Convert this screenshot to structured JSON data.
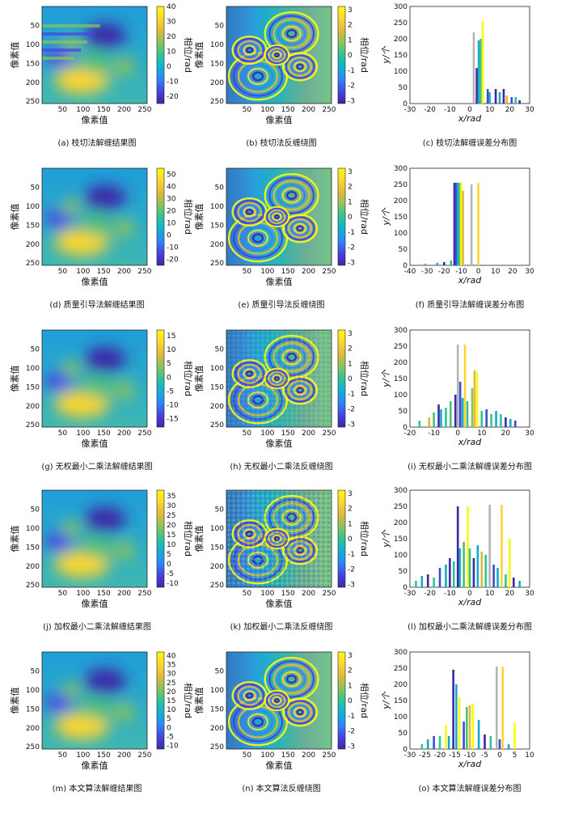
{
  "labels": {
    "pixel_axis": "像素值",
    "phase_colorbar": "相位/rad",
    "hist_x": "x/rad",
    "hist_y": "y/个"
  },
  "colormap": [
    "#3e26a8",
    "#4743e3",
    "#2e87f7",
    "#0fb2d4",
    "#2ec497",
    "#8bc35b",
    "#e0b93a",
    "#fed52f",
    "#f9fb0e"
  ],
  "rows": [
    {
      "captions": [
        "(a) 枝切法解缠结果图",
        "(b) 枝切法反缠绕图",
        "(c) 枝切法解缠误差分布图"
      ],
      "unwrap_cbar": {
        "min": -25,
        "max": 40,
        "ticks": [
          "40",
          "30",
          "20",
          "10",
          "0",
          "-10",
          "-20"
        ]
      },
      "wrap_cbar_ticks": [
        "3",
        "2",
        "1",
        "0",
        "-1",
        "-2",
        "-3"
      ],
      "hist": {
        "xmin": -30,
        "xmax": 30,
        "xticks": [
          "-30",
          "-20",
          "-10",
          "0",
          "10",
          "20",
          "30"
        ],
        "ymax": 300,
        "yticks": [
          "300",
          "250",
          "200",
          "150",
          "100",
          "50",
          "0"
        ],
        "bars": [
          {
            "x": 2,
            "y": 220,
            "c": "#b5b5b5"
          },
          {
            "x": 3.5,
            "y": 110,
            "c": "#3e26a8"
          },
          {
            "x": 4.5,
            "y": 195,
            "c": "#17a9c8"
          },
          {
            "x": 5.5,
            "y": 200,
            "c": "#4bbf7c"
          },
          {
            "x": 6.5,
            "y": 255,
            "c": "#f9fb0e"
          },
          {
            "x": 9,
            "y": 45,
            "c": "#3b4ccf"
          },
          {
            "x": 10,
            "y": 35,
            "c": "#26b0b6"
          },
          {
            "x": 13,
            "y": 45,
            "c": "#3e26a8"
          },
          {
            "x": 15,
            "y": 35,
            "c": "#17a9c8"
          },
          {
            "x": 17,
            "y": 45,
            "c": "#3e26a8"
          },
          {
            "x": 18.5,
            "y": 25,
            "c": "#e0b93a"
          },
          {
            "x": 21,
            "y": 20,
            "c": "#3b4ccf"
          },
          {
            "x": 23,
            "y": 20,
            "c": "#2ec497"
          },
          {
            "x": 25,
            "y": 10,
            "c": "#3e26a8"
          }
        ]
      }
    },
    {
      "captions": [
        "(d) 质量引导法解缠结果图",
        "(e) 质量引导法反缠绕图",
        "(f) 质量引导法解缠误差分布图"
      ],
      "unwrap_cbar": {
        "min": -25,
        "max": 55,
        "ticks": [
          "50",
          "40",
          "30",
          "20",
          "10",
          "0",
          "-10",
          "-20"
        ]
      },
      "wrap_cbar_ticks": [
        "3",
        "2",
        "1",
        "0",
        "-1",
        "-2",
        "-3"
      ],
      "hist": {
        "xmin": -40,
        "xmax": 30,
        "xticks": [
          "-40",
          "-30",
          "-20",
          "-10",
          "0",
          "10",
          "20",
          "30"
        ],
        "ymax": 300,
        "yticks": [
          "300",
          "250",
          "200",
          "150",
          "100",
          "50",
          "0"
        ],
        "bars": [
          {
            "x": -31,
            "y": 5,
            "c": "#2ec497"
          },
          {
            "x": -24,
            "y": 8,
            "c": "#17a9c8"
          },
          {
            "x": -20,
            "y": 10,
            "c": "#3e26a8"
          },
          {
            "x": -16,
            "y": 15,
            "c": "#2ec497"
          },
          {
            "x": -14,
            "y": 255,
            "c": "#3e26a8"
          },
          {
            "x": -13,
            "y": 255,
            "c": "#3b4ccf"
          },
          {
            "x": -12,
            "y": 255,
            "c": "#17a9c8"
          },
          {
            "x": -11,
            "y": 255,
            "c": "#4bbf7c"
          },
          {
            "x": -10,
            "y": 255,
            "c": "#f9fb0e"
          },
          {
            "x": -9,
            "y": 230,
            "c": "#e0b93a"
          },
          {
            "x": -4,
            "y": 250,
            "c": "#b5b5b5"
          },
          {
            "x": 0,
            "y": 255,
            "c": "#fed52f"
          }
        ]
      }
    },
    {
      "captions": [
        "(g) 无权最小二乘法解缠结果图",
        "(h) 无权最小二乘法反缠绕图",
        "(i) 无权最小二乘法解缠误差分布图"
      ],
      "unwrap_cbar": {
        "min": -18,
        "max": 17,
        "ticks": [
          "15",
          "10",
          "5",
          "0",
          "-5",
          "-10",
          "-15"
        ]
      },
      "wrap_cbar_ticks": [
        "3",
        "2",
        "1",
        "0",
        "-1",
        "-2",
        "-3"
      ],
      "hist": {
        "xmin": -20,
        "xmax": 30,
        "xticks": [
          "-20",
          "-10",
          "0",
          "10",
          "20",
          "30"
        ],
        "ymax": 300,
        "yticks": [
          "300",
          "250",
          "200",
          "150",
          "100",
          "50",
          "0"
        ],
        "bars": [
          {
            "x": -16,
            "y": 20,
            "c": "#2ec497"
          },
          {
            "x": -12,
            "y": 30,
            "c": "#e0b93a"
          },
          {
            "x": -10,
            "y": 45,
            "c": "#4bbf7c"
          },
          {
            "x": -8,
            "y": 70,
            "c": "#3e26a8"
          },
          {
            "x": -7,
            "y": 55,
            "c": "#17a9c8"
          },
          {
            "x": -5,
            "y": 60,
            "c": "#2ec497"
          },
          {
            "x": -3,
            "y": 80,
            "c": "#4bbf7c"
          },
          {
            "x": -1,
            "y": 100,
            "c": "#3e26a8"
          },
          {
            "x": 0,
            "y": 255,
            "c": "#b5b5b5"
          },
          {
            "x": 1,
            "y": 140,
            "c": "#3b4ccf"
          },
          {
            "x": 2,
            "y": 90,
            "c": "#17a9c8"
          },
          {
            "x": 3,
            "y": 255,
            "c": "#fed52f"
          },
          {
            "x": 4,
            "y": 80,
            "c": "#2ec497"
          },
          {
            "x": 6,
            "y": 120,
            "c": "#8bc35b"
          },
          {
            "x": 7,
            "y": 175,
            "c": "#e0b93a"
          },
          {
            "x": 8,
            "y": 170,
            "c": "#f9fb0e"
          },
          {
            "x": 10,
            "y": 50,
            "c": "#2ec497"
          },
          {
            "x": 12,
            "y": 55,
            "c": "#3b4ccf"
          },
          {
            "x": 14,
            "y": 40,
            "c": "#4bbf7c"
          },
          {
            "x": 16,
            "y": 50,
            "c": "#17a9c8"
          },
          {
            "x": 18,
            "y": 40,
            "c": "#2ec497"
          },
          {
            "x": 20,
            "y": 30,
            "c": "#3e26a8"
          },
          {
            "x": 22,
            "y": 25,
            "c": "#17a9c8"
          },
          {
            "x": 24,
            "y": 20,
            "c": "#3b4ccf"
          }
        ]
      }
    },
    {
      "captions": [
        "(j) 加权最小二乘法解缠结果图",
        "(k) 加权最小二乘法反缠绕图",
        "(l) 加权最小二乘法解缠误差分布图"
      ],
      "unwrap_cbar": {
        "min": -12,
        "max": 38,
        "ticks": [
          "35",
          "30",
          "25",
          "20",
          "15",
          "10",
          "5",
          "0",
          "-5",
          "-10"
        ]
      },
      "wrap_cbar_ticks": [
        "3",
        "2",
        "1",
        "0",
        "-1",
        "-2",
        "-3"
      ],
      "hist": {
        "xmin": -30,
        "xmax": 30,
        "xticks": [
          "-30",
          "-20",
          "-10",
          "0",
          "10",
          "20",
          "30"
        ],
        "ymax": 300,
        "yticks": [
          "300",
          "250",
          "200",
          "150",
          "100",
          "50",
          "0"
        ],
        "bars": [
          {
            "x": -27,
            "y": 20,
            "c": "#2ec497"
          },
          {
            "x": -24,
            "y": 35,
            "c": "#17a9c8"
          },
          {
            "x": -21,
            "y": 40,
            "c": "#3e26a8"
          },
          {
            "x": -18,
            "y": 30,
            "c": "#2ec497"
          },
          {
            "x": -15,
            "y": 60,
            "c": "#3b4ccf"
          },
          {
            "x": -12,
            "y": 70,
            "c": "#17a9c8"
          },
          {
            "x": -10,
            "y": 90,
            "c": "#3e26a8"
          },
          {
            "x": -8,
            "y": 80,
            "c": "#2ec497"
          },
          {
            "x": -6,
            "y": 250,
            "c": "#3e26a8"
          },
          {
            "x": -5,
            "y": 120,
            "c": "#17a9c8"
          },
          {
            "x": -3,
            "y": 140,
            "c": "#4bbf7c"
          },
          {
            "x": -1,
            "y": 250,
            "c": "#f9fb0e"
          },
          {
            "x": 0,
            "y": 120,
            "c": "#2ec497"
          },
          {
            "x": 2,
            "y": 90,
            "c": "#3e26a8"
          },
          {
            "x": 4,
            "y": 130,
            "c": "#17a9c8"
          },
          {
            "x": 6,
            "y": 110,
            "c": "#e0b93a"
          },
          {
            "x": 8,
            "y": 100,
            "c": "#2ec497"
          },
          {
            "x": 10,
            "y": 255,
            "c": "#b5b5b5"
          },
          {
            "x": 12,
            "y": 70,
            "c": "#3b4ccf"
          },
          {
            "x": 14,
            "y": 60,
            "c": "#17a9c8"
          },
          {
            "x": 16,
            "y": 255,
            "c": "#fed52f"
          },
          {
            "x": 18,
            "y": 40,
            "c": "#2ec497"
          },
          {
            "x": 20,
            "y": 150,
            "c": "#f9fb0e"
          },
          {
            "x": 22,
            "y": 30,
            "c": "#3e26a8"
          },
          {
            "x": 25,
            "y": 20,
            "c": "#17a9c8"
          }
        ]
      }
    },
    {
      "captions": [
        "(m) 本文算法解缠结果图",
        "(n) 本文算法反缠绕图",
        "(o) 本文算法解缠误差分布图"
      ],
      "unwrap_cbar": {
        "min": -12,
        "max": 42,
        "ticks": [
          "40",
          "35",
          "30",
          "25",
          "20",
          "15",
          "10",
          "5",
          "0",
          "-5",
          "-10"
        ]
      },
      "wrap_cbar_ticks": [
        "3",
        "2",
        "1",
        "0",
        "-1",
        "-2",
        "-3"
      ],
      "hist": {
        "xmin": -30,
        "xmax": 10,
        "xticks": [
          "-30",
          "-25",
          "-20",
          "-15",
          "-10",
          "-5",
          "0",
          "5",
          "10"
        ],
        "ymax": 300,
        "yticks": [
          "300",
          "250",
          "200",
          "150",
          "100",
          "50",
          "0"
        ],
        "bars": [
          {
            "x": -26,
            "y": 15,
            "c": "#2ec497"
          },
          {
            "x": -24,
            "y": 30,
            "c": "#17a9c8"
          },
          {
            "x": -22,
            "y": 40,
            "c": "#3b4ccf"
          },
          {
            "x": -20,
            "y": 40,
            "c": "#2ec497"
          },
          {
            "x": -18,
            "y": 75,
            "c": "#f9fb0e"
          },
          {
            "x": -17,
            "y": 40,
            "c": "#17a9c8"
          },
          {
            "x": -15.5,
            "y": 245,
            "c": "#3e26a8"
          },
          {
            "x": -14.5,
            "y": 200,
            "c": "#17a9c8"
          },
          {
            "x": -13.5,
            "y": 160,
            "c": "#f9fb0e"
          },
          {
            "x": -12,
            "y": 85,
            "c": "#3b4ccf"
          },
          {
            "x": -11,
            "y": 130,
            "c": "#4bbf7c"
          },
          {
            "x": -10,
            "y": 135,
            "c": "#e0b93a"
          },
          {
            "x": -9,
            "y": 140,
            "c": "#f9fb0e"
          },
          {
            "x": -7,
            "y": 90,
            "c": "#17a9c8"
          },
          {
            "x": -5,
            "y": 45,
            "c": "#3e26a8"
          },
          {
            "x": -3,
            "y": 40,
            "c": "#2ec497"
          },
          {
            "x": -1,
            "y": 255,
            "c": "#b5b5b5"
          },
          {
            "x": 0,
            "y": 30,
            "c": "#3b4ccf"
          },
          {
            "x": 1,
            "y": 255,
            "c": "#fed52f"
          },
          {
            "x": 3,
            "y": 15,
            "c": "#17a9c8"
          },
          {
            "x": 5,
            "y": 80,
            "c": "#f9fb0e"
          }
        ]
      }
    }
  ]
}
